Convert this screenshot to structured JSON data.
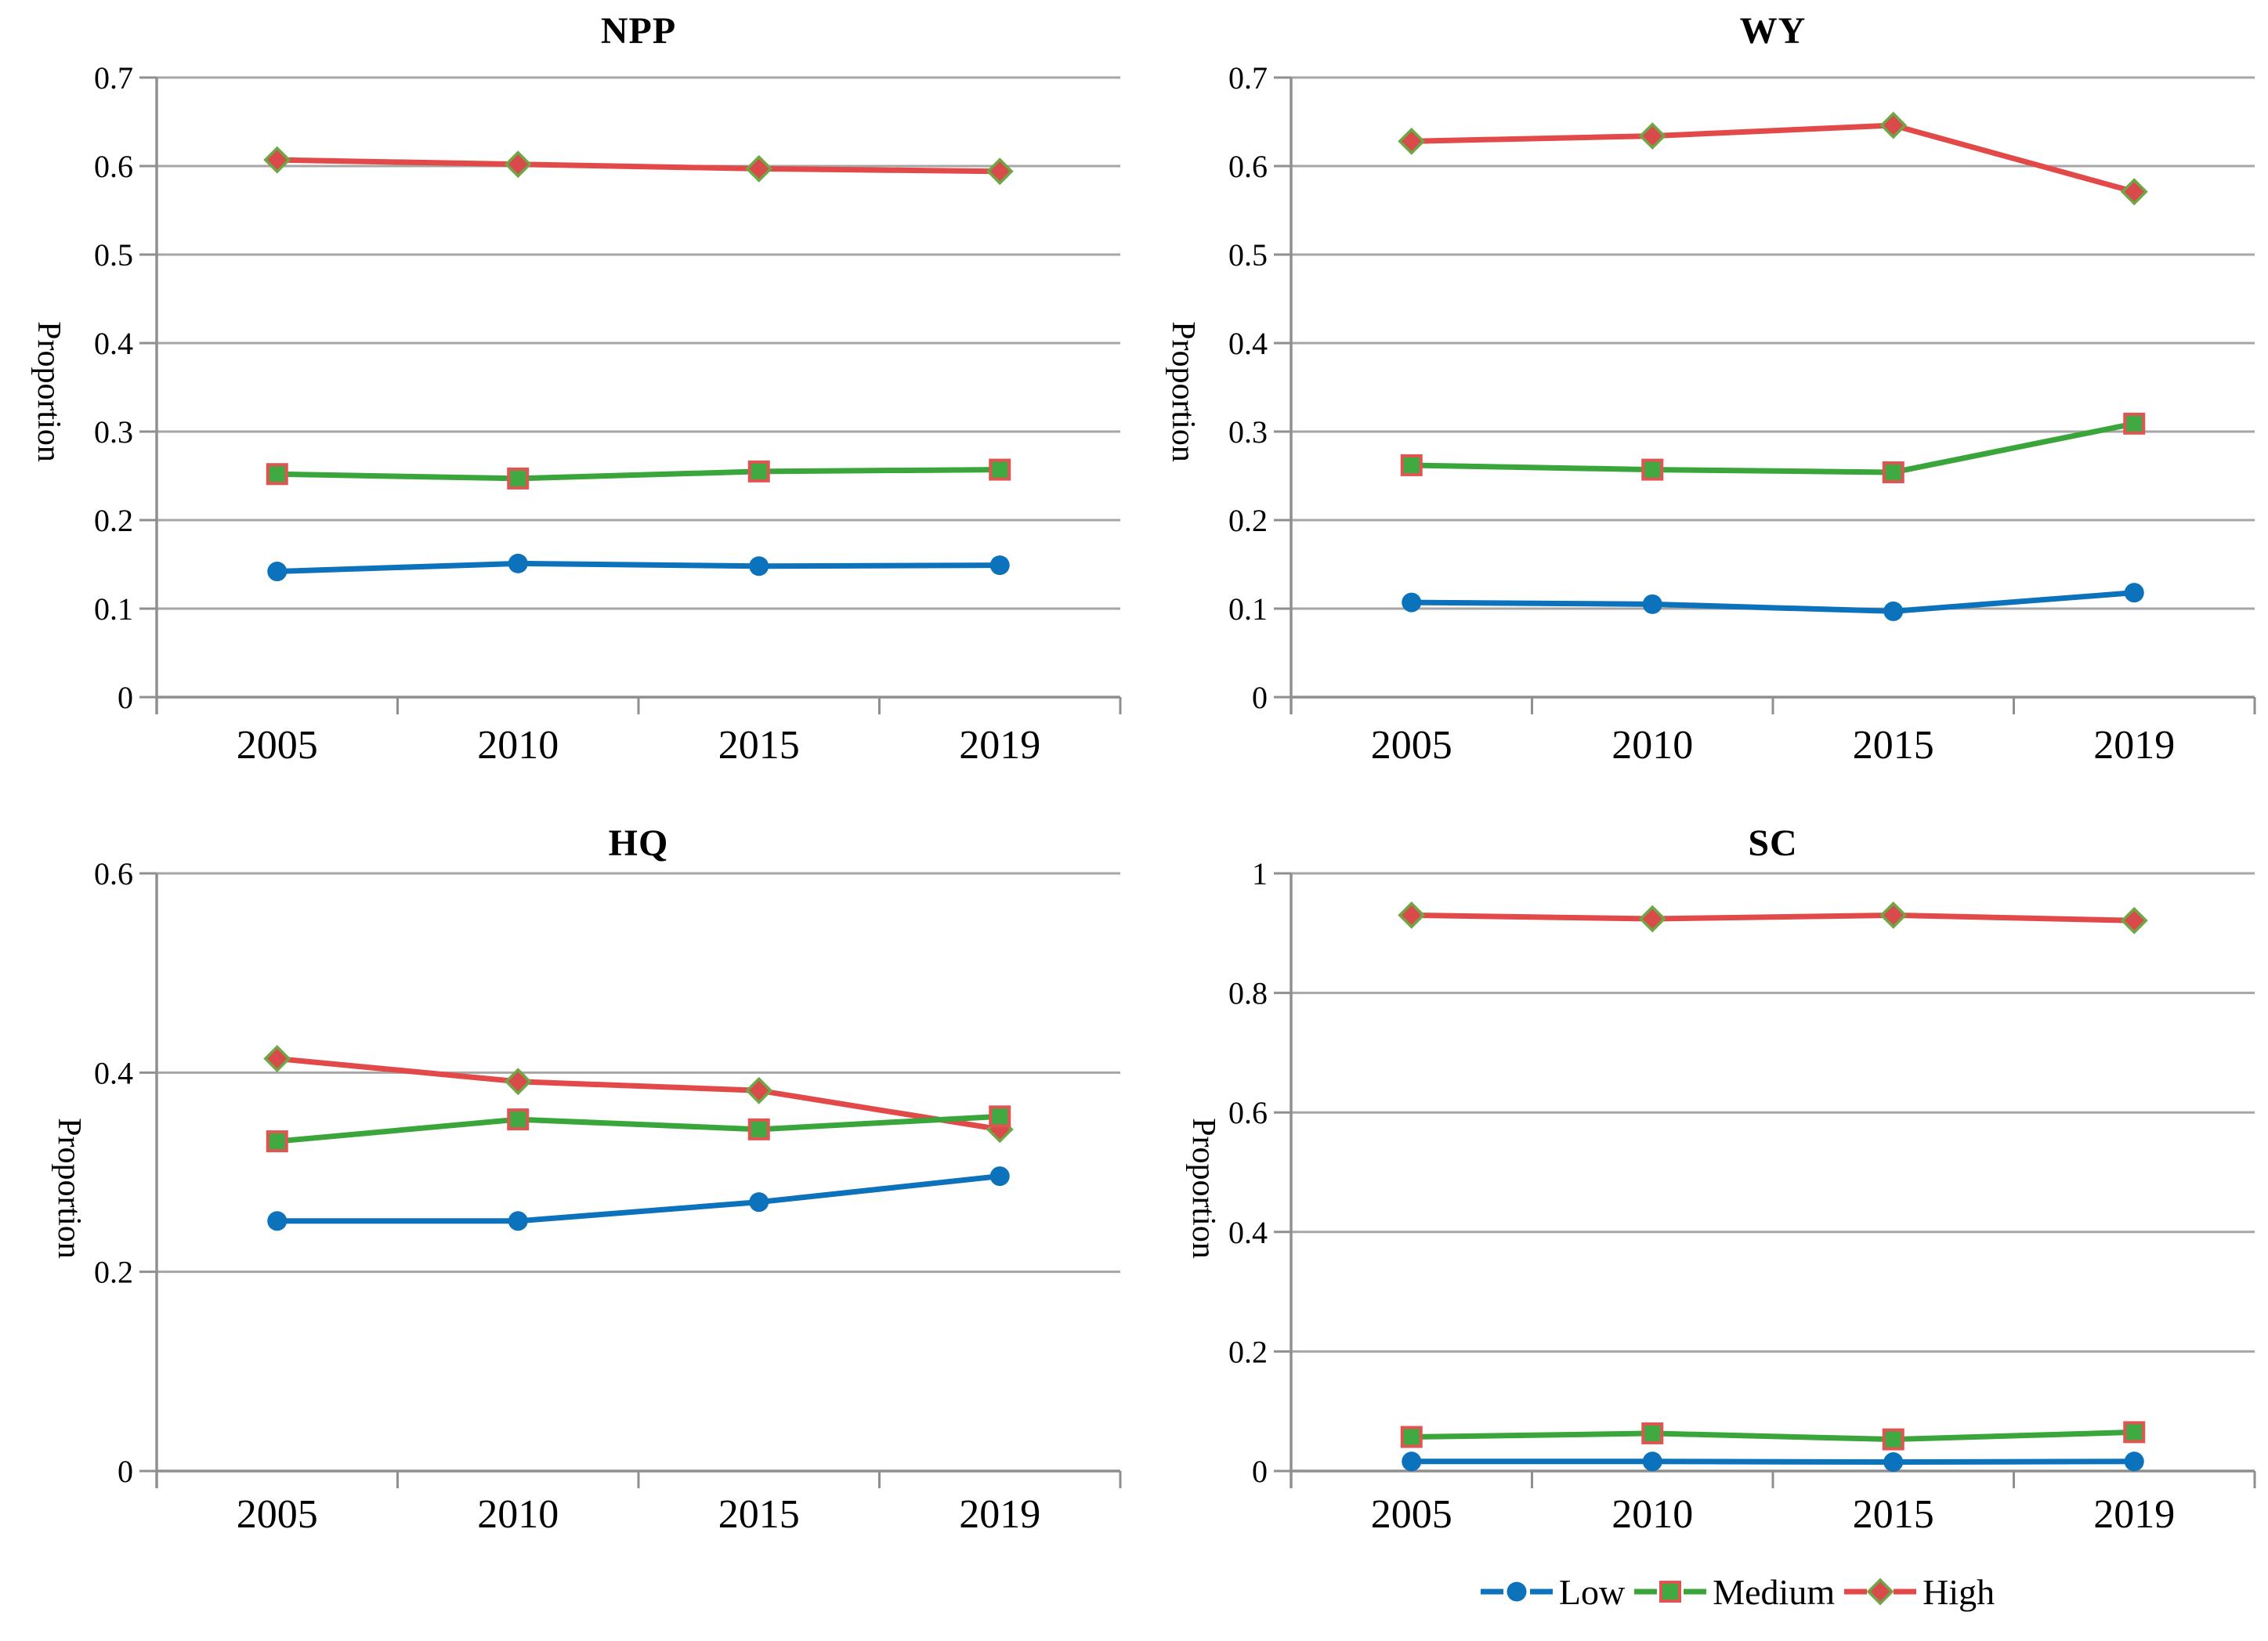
{
  "figure": {
    "background": "#ffffff"
  },
  "styles": {
    "grid_color": "#a6a6a6",
    "axis_color": "#8f8f8f",
    "tick_color": "#8f8f8f",
    "text_color": "#000000"
  },
  "series_styles": {
    "Low": {
      "marker": "circle",
      "line_color": "#0b72bb",
      "marker_fill": "#0b72bb",
      "marker_stroke": "#0b72bb"
    },
    "Medium": {
      "marker": "square",
      "line_color": "#3aa53a",
      "marker_fill": "#41a941",
      "marker_stroke": "#e05451"
    },
    "High": {
      "marker": "diamond",
      "line_color": "#e24a4a",
      "marker_fill": "#d94a4a",
      "marker_stroke": "#6fa746"
    }
  },
  "legend": {
    "position": "bottom-right",
    "items": [
      {
        "label": "Low",
        "series": "Low"
      },
      {
        "label": "Medium",
        "series": "Medium"
      },
      {
        "label": "High",
        "series": "High"
      }
    ]
  },
  "chart_data": [
    {
      "type": "line",
      "title": "NPP",
      "ylabel": "Proportion",
      "categories": [
        "2005",
        "2010",
        "2015",
        "2019"
      ],
      "ylim": [
        0,
        0.7
      ],
      "yticks": [
        0,
        0.1,
        0.2,
        0.3,
        0.4,
        0.5,
        0.6,
        0.7
      ],
      "ytick_labels": [
        "0",
        "0.1",
        "0.2",
        "0.3",
        "0.4",
        "0.5",
        "0.6",
        "0.7"
      ],
      "grid": true,
      "series": [
        {
          "name": "Low",
          "values": [
            0.142,
            0.151,
            0.148,
            0.149
          ]
        },
        {
          "name": "Medium",
          "values": [
            0.252,
            0.247,
            0.255,
            0.257
          ]
        },
        {
          "name": "High",
          "values": [
            0.607,
            0.602,
            0.597,
            0.594
          ]
        }
      ]
    },
    {
      "type": "line",
      "title": "WY",
      "ylabel": "Proportion",
      "categories": [
        "2005",
        "2010",
        "2015",
        "2019"
      ],
      "ylim": [
        0,
        0.7
      ],
      "yticks": [
        0,
        0.1,
        0.2,
        0.3,
        0.4,
        0.5,
        0.6,
        0.7
      ],
      "ytick_labels": [
        "0",
        "0.1",
        "0.2",
        "0.3",
        "0.4",
        "0.5",
        "0.6",
        "0.7"
      ],
      "grid": true,
      "series": [
        {
          "name": "Low",
          "values": [
            0.107,
            0.105,
            0.097,
            0.118
          ]
        },
        {
          "name": "Medium",
          "values": [
            0.262,
            0.257,
            0.254,
            0.309
          ]
        },
        {
          "name": "High",
          "values": [
            0.628,
            0.634,
            0.646,
            0.571
          ]
        }
      ]
    },
    {
      "type": "line",
      "title": "HQ",
      "ylabel": "Proportion",
      "categories": [
        "2005",
        "2010",
        "2015",
        "2019"
      ],
      "ylim": [
        0,
        0.6
      ],
      "yticks": [
        0,
        0.2,
        0.4,
        0.6
      ],
      "ytick_labels": [
        "0",
        "0.2",
        "0.4",
        "0.6"
      ],
      "grid": true,
      "series": [
        {
          "name": "Low",
          "values": [
            0.251,
            0.251,
            0.27,
            0.296
          ]
        },
        {
          "name": "Medium",
          "values": [
            0.331,
            0.353,
            0.343,
            0.356
          ]
        },
        {
          "name": "High",
          "values": [
            0.414,
            0.391,
            0.382,
            0.343
          ]
        }
      ]
    },
    {
      "type": "line",
      "title": "SC",
      "ylabel": "Proportion",
      "categories": [
        "2005",
        "2010",
        "2015",
        "2019"
      ],
      "ylim": [
        0,
        1
      ],
      "yticks": [
        0,
        0.2,
        0.4,
        0.6,
        0.8,
        1
      ],
      "ytick_labels": [
        "0",
        "0.2",
        "0.4",
        "0.6",
        "0.8",
        "1"
      ],
      "grid": true,
      "series": [
        {
          "name": "Low",
          "values": [
            0.016,
            0.016,
            0.015,
            0.016
          ]
        },
        {
          "name": "Medium",
          "values": [
            0.057,
            0.063,
            0.053,
            0.065
          ]
        },
        {
          "name": "High",
          "values": [
            0.93,
            0.924,
            0.93,
            0.921
          ]
        }
      ]
    }
  ]
}
